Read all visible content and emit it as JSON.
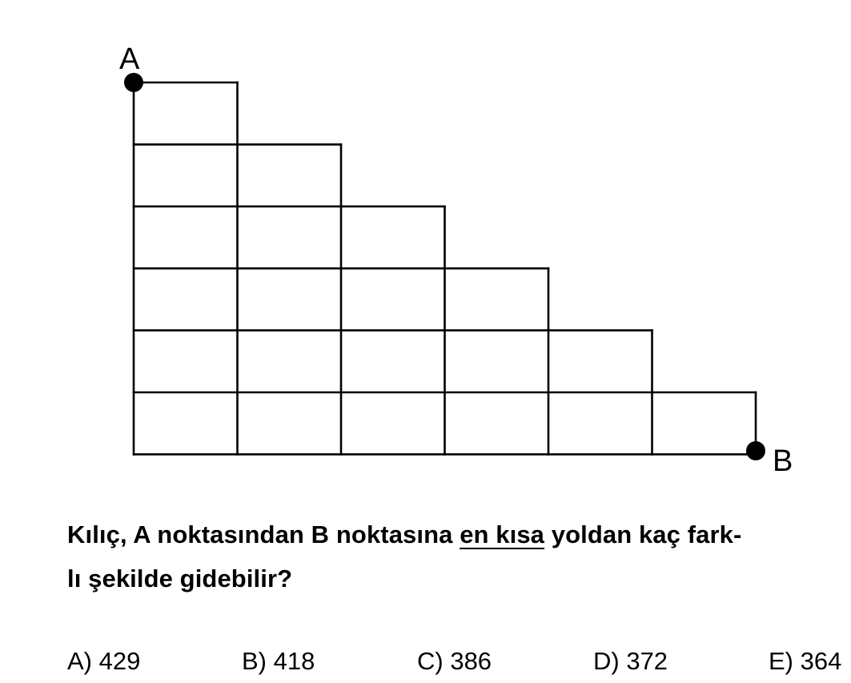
{
  "diagram": {
    "point_a_label": "A",
    "point_b_label": "B",
    "row_lengths_top_to_bottom": [
      1,
      2,
      3,
      4,
      5,
      6
    ]
  },
  "question": {
    "line1_part1": "Kılıç, A noktasından B noktasına ",
    "line1_underlined": "en kısa",
    "line1_part2": " yoldan kaç fark-",
    "line2": "lı şekilde gidebilir?"
  },
  "options": [
    {
      "label": "A) 429"
    },
    {
      "label": "B) 418"
    },
    {
      "label": "C) 386"
    },
    {
      "label": "D) 372"
    },
    {
      "label": "E) 364"
    }
  ]
}
